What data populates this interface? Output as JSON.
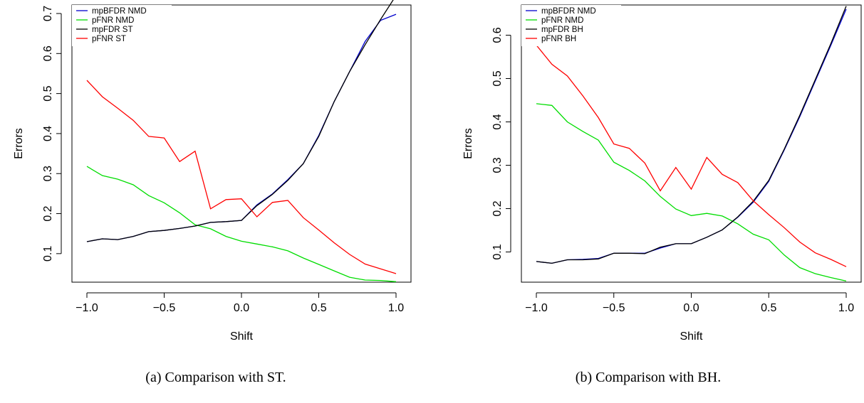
{
  "chart_data": [
    {
      "type": "line",
      "xlabel": "Shift",
      "ylabel": "Errors",
      "xlim": [
        -1.0,
        1.0
      ],
      "ylim": [
        0.05,
        0.7
      ],
      "xticks": [
        "-1.0",
        "-0.5",
        "0.0",
        "0.5",
        "1.0"
      ],
      "yticks": [
        "0.1",
        "0.2",
        "0.3",
        "0.4",
        "0.5",
        "0.6",
        "0.7"
      ],
      "legend_position": "top-left",
      "caption": "(a) Comparison with ST.",
      "x": [
        -1.0,
        -0.9,
        -0.8,
        -0.7,
        -0.6,
        -0.5,
        -0.4,
        -0.3,
        -0.2,
        -0.1,
        0.0,
        0.1,
        0.2,
        0.3,
        0.4,
        0.5,
        0.6,
        0.7,
        0.8,
        0.9,
        1.0
      ],
      "series": [
        {
          "name": "mpBFDR NMD",
          "color": "#0000cc",
          "values": [
            0.13,
            0.137,
            0.135,
            0.143,
            0.155,
            0.158,
            0.163,
            0.169,
            0.178,
            0.18,
            0.183,
            0.222,
            0.249,
            0.285,
            0.325,
            0.395,
            0.48,
            0.555,
            0.63,
            0.683,
            0.698
          ]
        },
        {
          "name": "pFNR NMD",
          "color": "#00dd00",
          "values": [
            0.318,
            0.295,
            0.286,
            0.272,
            0.245,
            0.227,
            0.202,
            0.172,
            0.162,
            0.143,
            0.131,
            0.124,
            0.117,
            0.107,
            0.089,
            0.073,
            0.057,
            0.041,
            0.034,
            0.033,
            0.03
          ]
        },
        {
          "name": "mpFDR ST",
          "color": "#000000",
          "values": [
            0.13,
            0.137,
            0.135,
            0.143,
            0.155,
            0.158,
            0.163,
            0.169,
            0.178,
            0.18,
            0.183,
            0.22,
            0.248,
            0.283,
            0.325,
            0.393,
            0.48,
            0.555,
            0.622,
            0.685,
            0.745
          ]
        },
        {
          "name": "pFNR ST",
          "color": "#ff0000",
          "values": [
            0.533,
            0.492,
            0.463,
            0.433,
            0.393,
            0.389,
            0.33,
            0.356,
            0.212,
            0.235,
            0.237,
            0.192,
            0.228,
            0.233,
            0.19,
            0.159,
            0.127,
            0.098,
            0.074,
            0.062,
            0.05
          ]
        }
      ]
    },
    {
      "type": "line",
      "xlabel": "Shift",
      "ylabel": "Errors",
      "xlim": [
        -1.0,
        1.0
      ],
      "ylim": [
        0.05,
        0.65
      ],
      "xticks": [
        "-1.0",
        "-0.5",
        "0.0",
        "0.5",
        "1.0"
      ],
      "yticks": [
        "0.1",
        "0.2",
        "0.3",
        "0.4",
        "0.5",
        "0.6"
      ],
      "legend_position": "top-left",
      "caption": "(b) Comparison with BH.",
      "x": [
        -1.0,
        -0.9,
        -0.8,
        -0.7,
        -0.6,
        -0.5,
        -0.4,
        -0.3,
        -0.2,
        -0.1,
        0.0,
        0.1,
        0.2,
        0.3,
        0.4,
        0.5,
        0.6,
        0.7,
        0.8,
        0.9,
        1.0
      ],
      "series": [
        {
          "name": "mpBFDR NMD",
          "color": "#0000cc",
          "values": [
            0.078,
            0.074,
            0.082,
            0.083,
            0.085,
            0.097,
            0.097,
            0.097,
            0.109,
            0.119,
            0.119,
            0.134,
            0.151,
            0.18,
            0.215,
            0.263,
            0.335,
            0.412,
            0.494,
            0.576,
            0.66
          ]
        },
        {
          "name": "pFNR NMD",
          "color": "#00dd00",
          "values": [
            0.442,
            0.438,
            0.4,
            0.378,
            0.358,
            0.307,
            0.288,
            0.264,
            0.228,
            0.199,
            0.184,
            0.189,
            0.183,
            0.165,
            0.141,
            0.128,
            0.093,
            0.064,
            0.05,
            0.041,
            0.033
          ]
        },
        {
          "name": "mpFDR BH",
          "color": "#000000",
          "values": [
            0.078,
            0.074,
            0.082,
            0.082,
            0.084,
            0.097,
            0.097,
            0.096,
            0.111,
            0.119,
            0.119,
            0.134,
            0.151,
            0.181,
            0.217,
            0.265,
            0.337,
            0.415,
            0.497,
            0.58,
            0.667
          ]
        },
        {
          "name": "pFNR BH",
          "color": "#ff0000",
          "values": [
            0.577,
            0.533,
            0.506,
            0.46,
            0.41,
            0.349,
            0.339,
            0.305,
            0.241,
            0.295,
            0.245,
            0.318,
            0.279,
            0.26,
            0.218,
            0.186,
            0.156,
            0.123,
            0.098,
            0.083,
            0.066
          ]
        }
      ]
    }
  ]
}
